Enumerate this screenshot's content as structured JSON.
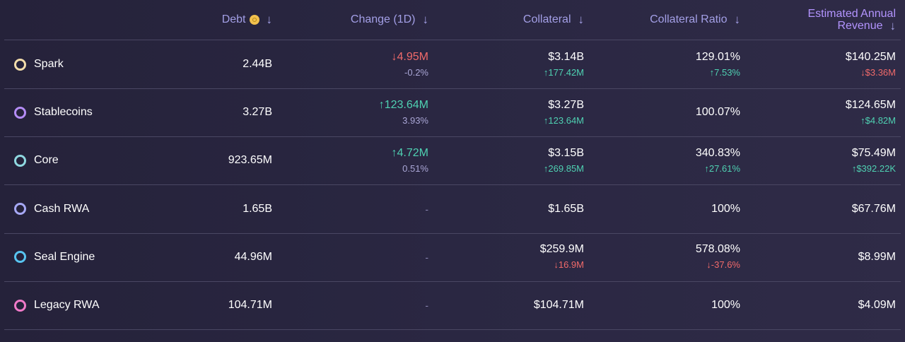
{
  "header": {
    "debt": "Debt",
    "change": "Change (1D)",
    "collateral": "Collateral",
    "collateral_ratio": "Collateral Ratio",
    "revenue_line1": "Estimated Annual",
    "revenue_line2": "Revenue",
    "sort_arrow": "↓"
  },
  "rows": [
    {
      "name": "Spark",
      "ring_color": "#f2dcaa",
      "debt": "2.44B",
      "change": "↓4.95M",
      "change_pct": "-0.2%",
      "collateral": "$3.14B",
      "collateral_change": "↑177.42M",
      "ratio": "129.01%",
      "ratio_change": "↑7.53%",
      "revenue": "$140.25M",
      "revenue_change": "↓$3.36M"
    },
    {
      "name": "Stablecoins",
      "ring_color": "#b48cf6",
      "debt": "3.27B",
      "change": "↑123.64M",
      "change_pct": "3.93%",
      "collateral": "$3.27B",
      "collateral_change": "↑123.64M",
      "ratio": "100.07%",
      "ratio_change": "",
      "revenue": "$124.65M",
      "revenue_change": "↑$4.82M"
    },
    {
      "name": "Core",
      "ring_color": "#8fd8e0",
      "debt": "923.65M",
      "change": "↑4.72M",
      "change_pct": "0.51%",
      "collateral": "$3.15B",
      "collateral_change": "↑269.85M",
      "ratio": "340.83%",
      "ratio_change": "↑27.61%",
      "revenue": "$75.49M",
      "revenue_change": "↑$392.22K"
    },
    {
      "name": "Cash RWA",
      "ring_color": "#a6a8f5",
      "debt": "1.65B",
      "change": "-",
      "change_pct": "",
      "collateral": "$1.65B",
      "collateral_change": "",
      "ratio": "100%",
      "ratio_change": "",
      "revenue": "$67.76M",
      "revenue_change": ""
    },
    {
      "name": "Seal Engine",
      "ring_color": "#58c4f0",
      "debt": "44.96M",
      "change": "-",
      "change_pct": "",
      "collateral": "$259.9M",
      "collateral_change": "↓16.9M",
      "ratio": "578.08%",
      "ratio_change": "↓-37.6%",
      "revenue": "$8.99M",
      "revenue_change": ""
    },
    {
      "name": "Legacy RWA",
      "ring_color": "#f07ac8",
      "debt": "104.71M",
      "change": "-",
      "change_pct": "",
      "collateral": "$104.71M",
      "collateral_change": "",
      "ratio": "100%",
      "ratio_change": "",
      "revenue": "$4.09M",
      "revenue_change": ""
    }
  ],
  "colors": {
    "up": "#4fd1b2",
    "down": "#f06a6a",
    "header": "#a39fe6",
    "revenue_header": "#b394ff"
  }
}
